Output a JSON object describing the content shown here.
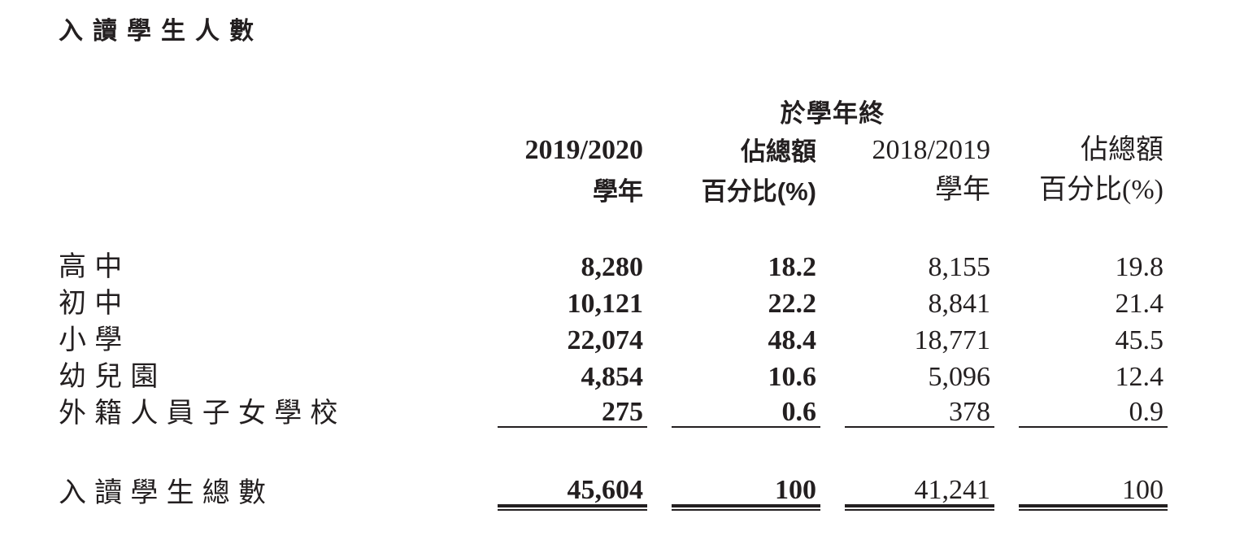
{
  "title": "入讀學生人數",
  "colors": {
    "text": "#231f20",
    "background": "#ffffff",
    "rule": "#231f20"
  },
  "table": {
    "spanner": "於學年終",
    "columns": [
      {
        "line1": "2019/2020",
        "line2": "學年"
      },
      {
        "line1": "佔總額",
        "line2": "百分比(%)"
      },
      {
        "line1": "2018/2019",
        "line2": "學年"
      },
      {
        "line1": "佔總額",
        "line2": "百分比(%)"
      }
    ],
    "rows": [
      {
        "label": "高中",
        "values": [
          "8,280",
          "18.2",
          "8,155",
          "19.8"
        ]
      },
      {
        "label": "初中",
        "values": [
          "10,121",
          "22.2",
          "8,841",
          "21.4"
        ]
      },
      {
        "label": "小學",
        "values": [
          "22,074",
          "48.4",
          "18,771",
          "45.5"
        ]
      },
      {
        "label": "幼兒園",
        "values": [
          "4,854",
          "10.6",
          "5,096",
          "12.4"
        ]
      },
      {
        "label": "外籍人員子女學校",
        "values": [
          "275",
          "0.6",
          "378",
          "0.9"
        ]
      }
    ],
    "total": {
      "label": "入讀學生總數",
      "values": [
        "45,604",
        "100",
        "41,241",
        "100"
      ]
    }
  }
}
